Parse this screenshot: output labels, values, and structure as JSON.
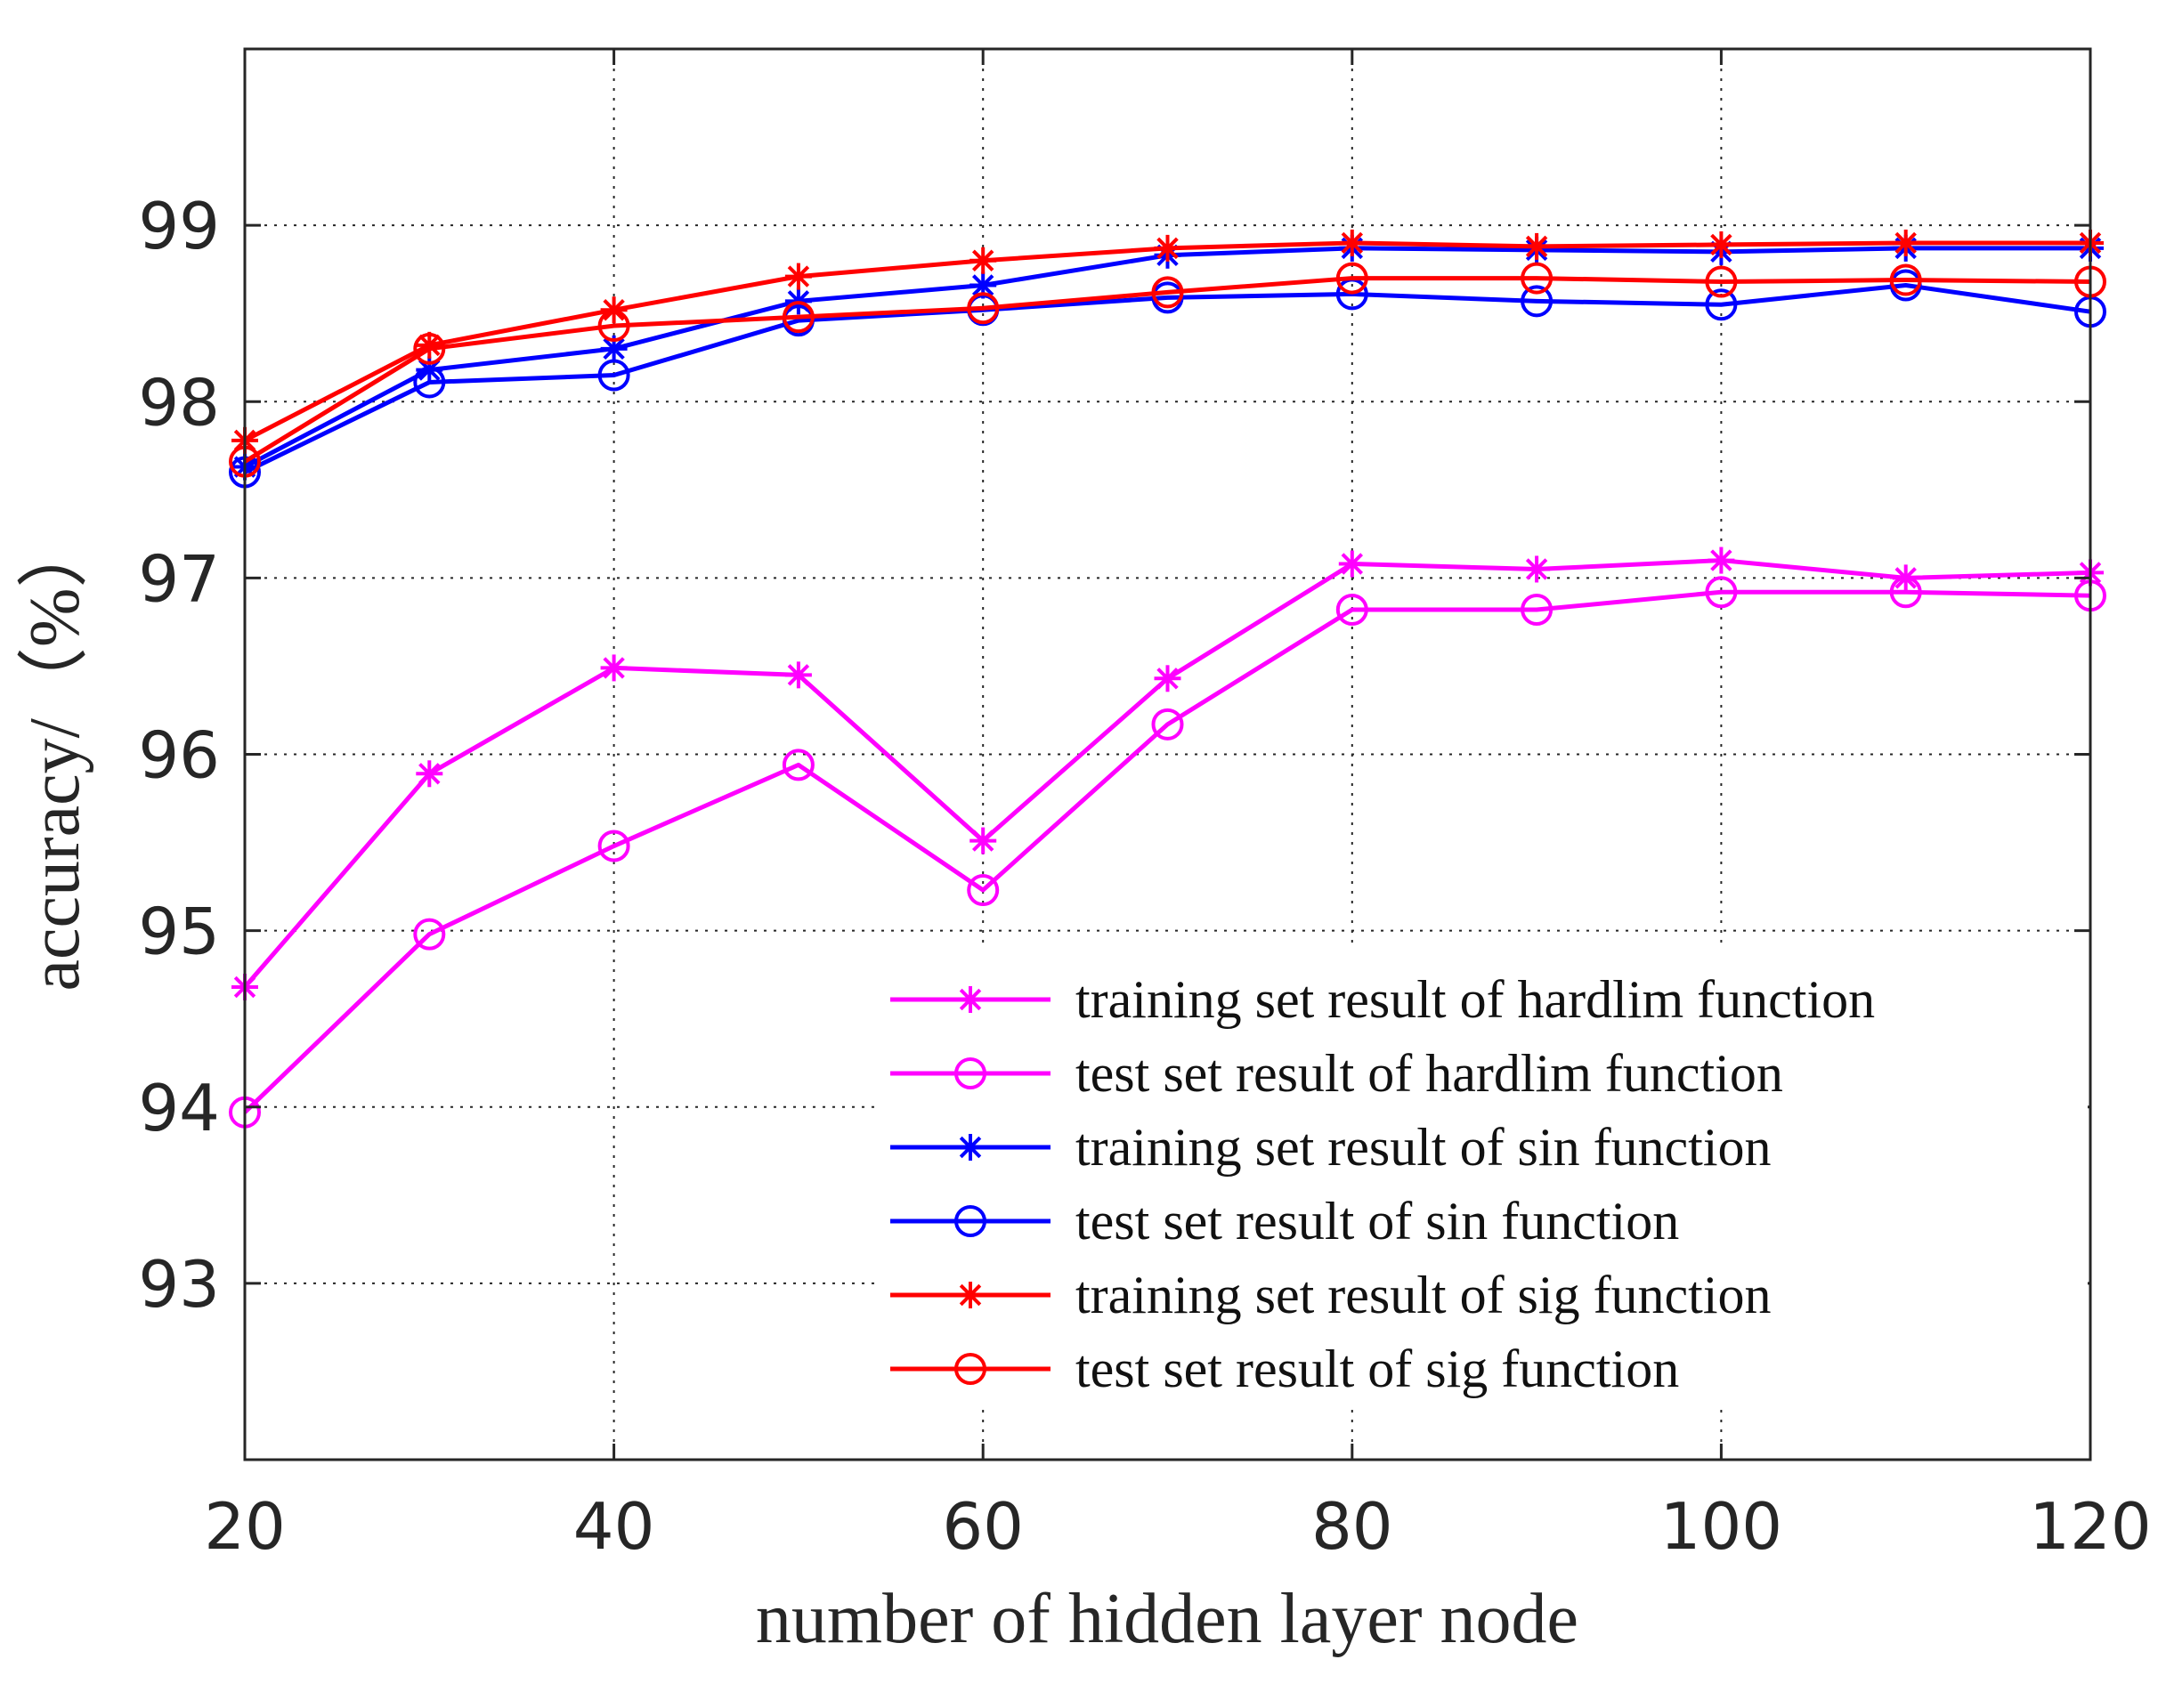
{
  "chart_data": {
    "type": "line",
    "title": "",
    "xlabel": "number of hidden layer node",
    "ylabel": "accuracy/（%）",
    "xlim": [
      20,
      120
    ],
    "ylim": [
      92,
      100
    ],
    "xticks": [
      20,
      40,
      60,
      80,
      100,
      120
    ],
    "yticks": [
      93,
      94,
      95,
      96,
      97,
      98,
      99
    ],
    "xtick_labels": [
      "20",
      "40",
      "60",
      "80",
      "100",
      "120"
    ],
    "ytick_labels": [
      "93",
      "94",
      "95",
      "96",
      "97",
      "98",
      "99"
    ],
    "grid": true,
    "legend_position": "bottom-right",
    "x": [
      20,
      30,
      40,
      50,
      60,
      70,
      80,
      90,
      100,
      110,
      120
    ],
    "series": [
      {
        "name": "training set result of hardlim function",
        "color": "#ff00ff",
        "marker": "asterisk",
        "values": [
          94.68,
          95.89,
          96.49,
          96.45,
          95.51,
          96.43,
          97.08,
          97.05,
          97.1,
          97.0,
          97.03
        ]
      },
      {
        "name": "test set result of hardlim function",
        "color": "#ff00ff",
        "marker": "circle",
        "values": [
          93.97,
          94.98,
          95.48,
          95.94,
          95.23,
          96.17,
          96.82,
          96.82,
          96.92,
          96.92,
          96.9
        ]
      },
      {
        "name": "training set result of sin function",
        "color": "#0000ff",
        "marker": "asterisk",
        "values": [
          97.63,
          98.18,
          98.3,
          98.57,
          98.66,
          98.83,
          98.87,
          98.86,
          98.85,
          98.87,
          98.87
        ]
      },
      {
        "name": "test set result of sin function",
        "color": "#0000ff",
        "marker": "circle",
        "values": [
          97.6,
          98.11,
          98.15,
          98.46,
          98.52,
          98.59,
          98.61,
          98.57,
          98.55,
          98.66,
          98.51
        ]
      },
      {
        "name": "training set result of sig function",
        "color": "#ff0000",
        "marker": "asterisk",
        "values": [
          97.78,
          98.32,
          98.52,
          98.71,
          98.8,
          98.87,
          98.9,
          98.88,
          98.89,
          98.9,
          98.9
        ]
      },
      {
        "name": "test set result of sig function",
        "color": "#ff0000",
        "marker": "circle",
        "values": [
          97.66,
          98.3,
          98.43,
          98.48,
          98.53,
          98.62,
          98.7,
          98.7,
          98.68,
          98.69,
          98.68
        ]
      }
    ]
  }
}
